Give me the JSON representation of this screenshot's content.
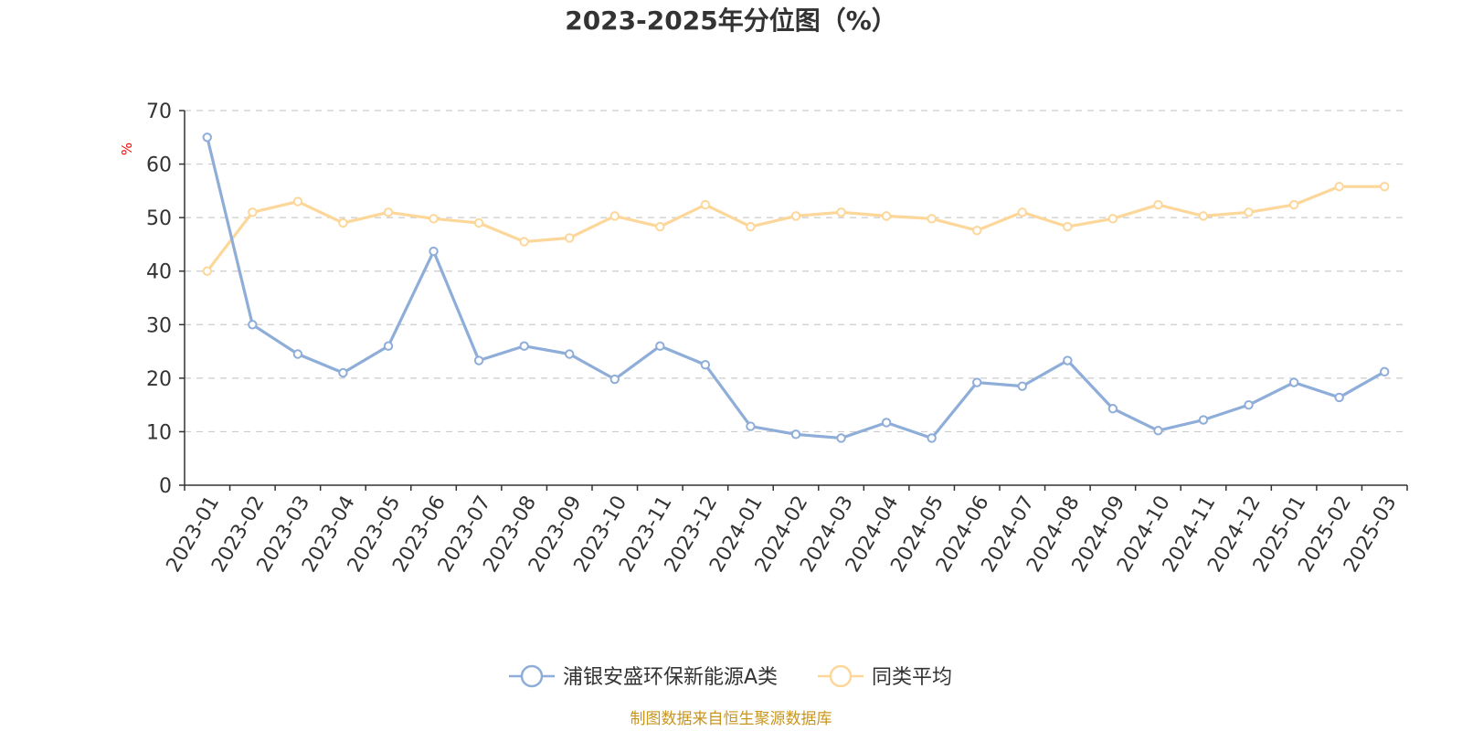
{
  "chart_data": {
    "type": "line",
    "title": "2023-2025年分位图（%）",
    "ylabel": "%",
    "xlabel": "",
    "ylim": [
      0,
      70
    ],
    "y_ticks": [
      0,
      10,
      20,
      30,
      40,
      50,
      60,
      70
    ],
    "grid": true,
    "legend_position": "bottom-center",
    "categories": [
      "2023-01",
      "2023-02",
      "2023-03",
      "2023-04",
      "2023-05",
      "2023-06",
      "2023-07",
      "2023-08",
      "2023-09",
      "2023-10",
      "2023-11",
      "2023-12",
      "2024-01",
      "2024-02",
      "2024-03",
      "2024-04",
      "2024-05",
      "2024-06",
      "2024-07",
      "2024-08",
      "2024-09",
      "2024-10",
      "2024-11",
      "2024-12",
      "2025-01",
      "2025-02",
      "2025-03"
    ],
    "series": [
      {
        "name": "浦银安盛环保新能源A类",
        "color": "#8eadd8",
        "values": [
          65,
          30,
          24.5,
          21,
          26,
          43.7,
          23.3,
          26,
          24.5,
          19.8,
          26,
          22.5,
          11,
          9.5,
          8.8,
          11.7,
          8.8,
          19.2,
          18.5,
          23.3,
          14.3,
          10.2,
          12.2,
          15,
          19.2,
          16.4,
          21.2
        ]
      },
      {
        "name": "同类平均",
        "color": "#fcd799",
        "values": [
          40,
          51,
          53,
          49,
          51,
          49.8,
          49,
          45.5,
          46.2,
          50.3,
          48.3,
          52.4,
          48.3,
          50.3,
          51,
          50.3,
          49.8,
          47.6,
          51,
          48.3,
          49.8,
          52.4,
          50.3,
          51,
          52.4,
          55.8,
          55.8
        ]
      }
    ]
  },
  "source": "制图数据来自恒生聚源数据库"
}
